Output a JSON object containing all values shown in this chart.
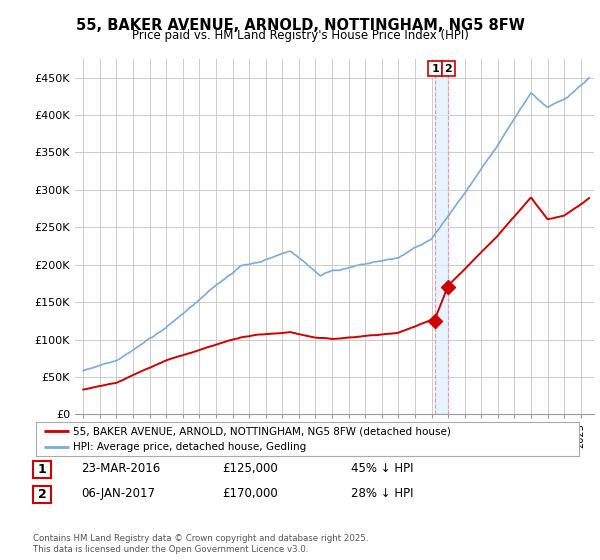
{
  "title": "55, BAKER AVENUE, ARNOLD, NOTTINGHAM, NG5 8FW",
  "subtitle": "Price paid vs. HM Land Registry's House Price Index (HPI)",
  "hpi_color": "#7aabdc",
  "sale_color": "#cc0000",
  "background_color": "#ffffff",
  "grid_color": "#cccccc",
  "ylim": [
    0,
    475000
  ],
  "yticks": [
    0,
    50000,
    100000,
    150000,
    200000,
    250000,
    300000,
    350000,
    400000,
    450000
  ],
  "ytick_labels": [
    "£0",
    "£50K",
    "£100K",
    "£150K",
    "£200K",
    "£250K",
    "£300K",
    "£350K",
    "£400K",
    "£450K"
  ],
  "marker1_x": 2016.22,
  "marker1_y": 125000,
  "marker2_x": 2017.01,
  "marker2_y": 170000,
  "vline_x1": 2016.22,
  "vline_x2": 2017.01,
  "legend_label1": "55, BAKER AVENUE, ARNOLD, NOTTINGHAM, NG5 8FW (detached house)",
  "legend_label2": "HPI: Average price, detached house, Gedling",
  "table_rows": [
    {
      "num": "1",
      "date": "23-MAR-2016",
      "price": "£125,000",
      "pct": "45% ↓ HPI"
    },
    {
      "num": "2",
      "date": "06-JAN-2017",
      "price": "£170,000",
      "pct": "28% ↓ HPI"
    }
  ],
  "footnote": "Contains HM Land Registry data © Crown copyright and database right 2025.\nThis data is licensed under the Open Government Licence v3.0.",
  "xlim_start": 1994.5,
  "xlim_end": 2025.8
}
